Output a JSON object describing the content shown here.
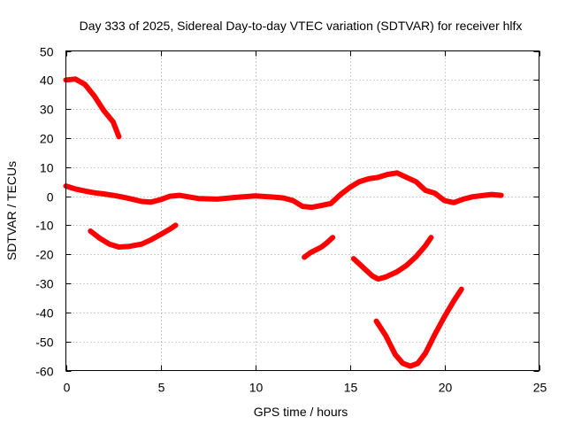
{
  "chart_data": {
    "type": "line",
    "title": "Day 333 of 2025, Sidereal Day-to-day VTEC variation (SDTVAR) for receiver hlfx",
    "xlabel": "GPS time / hours",
    "ylabel": "SDTVAR / TECUs",
    "xlim": [
      0,
      25
    ],
    "ylim": [
      -60,
      50
    ],
    "xticks": [
      0,
      5,
      10,
      15,
      20,
      25
    ],
    "yticks": [
      -60,
      -50,
      -40,
      -30,
      -20,
      -10,
      0,
      10,
      20,
      30,
      40,
      50
    ],
    "grid": true,
    "color": "#ff0000",
    "series": [
      {
        "name": "arc-main",
        "x": [
          0,
          0.5,
          1,
          1.5,
          2,
          2.5,
          3,
          3.5,
          4,
          4.5,
          5,
          5.5,
          6,
          7,
          8,
          9,
          10,
          11,
          11.5,
          12,
          12.5,
          13,
          13.5,
          14,
          14.5,
          15,
          15.5,
          16,
          16.5,
          17,
          17.5,
          18,
          18.5,
          19,
          19.5,
          20,
          20.5,
          21,
          21.5,
          22,
          22.5,
          23
        ],
        "y": [
          3.5,
          2.5,
          1.8,
          1.2,
          0.8,
          0.3,
          -0.3,
          -1.0,
          -1.8,
          -2.0,
          -1.2,
          0,
          0.3,
          -0.8,
          -1.0,
          -0.4,
          0.1,
          -0.3,
          -0.6,
          -1.5,
          -3.5,
          -3.8,
          -3.2,
          -2.5,
          0.5,
          3.0,
          5.0,
          6.0,
          6.5,
          7.5,
          8.0,
          6.5,
          5.0,
          2.0,
          1.0,
          -1.5,
          -2.2,
          -1.0,
          -0.2,
          0.2,
          0.6,
          0.3
        ]
      },
      {
        "name": "arc-a",
        "x": [
          0,
          0.5,
          1,
          1.5,
          2,
          2.5,
          2.8
        ],
        "y": [
          40,
          40.3,
          38.5,
          34.5,
          29.5,
          25.5,
          20.5
        ]
      },
      {
        "name": "arc-b",
        "x": [
          1.3,
          1.8,
          2.3,
          2.8,
          3.3,
          4.0,
          4.5,
          5.0,
          5.5,
          5.8
        ],
        "y": [
          -12,
          -14.5,
          -16.5,
          -17.5,
          -17.3,
          -16.5,
          -15,
          -13.2,
          -11.3,
          -10
        ]
      },
      {
        "name": "arc-c",
        "x": [
          12.6,
          12.9,
          13.2,
          13.5,
          13.8,
          14.1
        ],
        "y": [
          -21,
          -19.5,
          -18.5,
          -17.5,
          -16,
          -14.2
        ]
      },
      {
        "name": "arc-d",
        "x": [
          15.2,
          15.7,
          16.2,
          16.5,
          16.9,
          17.5,
          18.0,
          18.5,
          19.0,
          19.3
        ],
        "y": [
          -21.5,
          -24.5,
          -27.5,
          -28.5,
          -27.8,
          -26.0,
          -23.8,
          -20.8,
          -17.0,
          -14.2
        ]
      },
      {
        "name": "arc-e",
        "x": [
          16.4,
          16.9,
          17.4,
          17.8,
          18.2,
          18.6,
          19.0,
          19.5,
          20.0,
          20.5,
          20.9
        ],
        "y": [
          -43,
          -48,
          -54.5,
          -57.5,
          -58.5,
          -57.5,
          -54,
          -47.5,
          -41.5,
          -36,
          -32
        ]
      }
    ]
  }
}
